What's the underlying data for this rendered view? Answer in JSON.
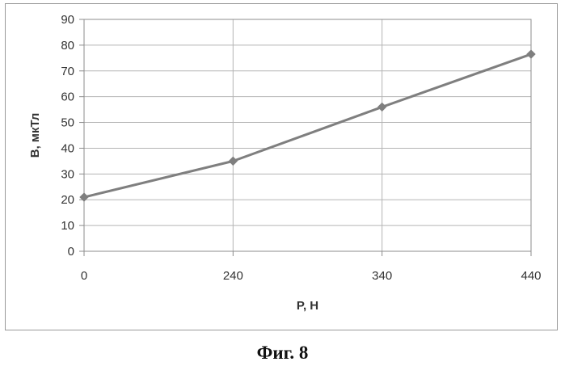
{
  "chart_data": {
    "type": "line",
    "categories": [
      "0",
      "240",
      "340",
      "440"
    ],
    "series": [
      {
        "values": [
          21,
          35,
          56,
          76.5
        ]
      }
    ],
    "xlabel": "P, H",
    "ylabel": "B, мкТл",
    "ylim": [
      0,
      90
    ],
    "yticks": [
      0,
      10,
      20,
      30,
      40,
      50,
      60,
      70,
      80,
      90
    ],
    "grid": true,
    "line_color": "#7f7f7f",
    "marker": "diamond"
  },
  "caption": "Фиг. 8"
}
